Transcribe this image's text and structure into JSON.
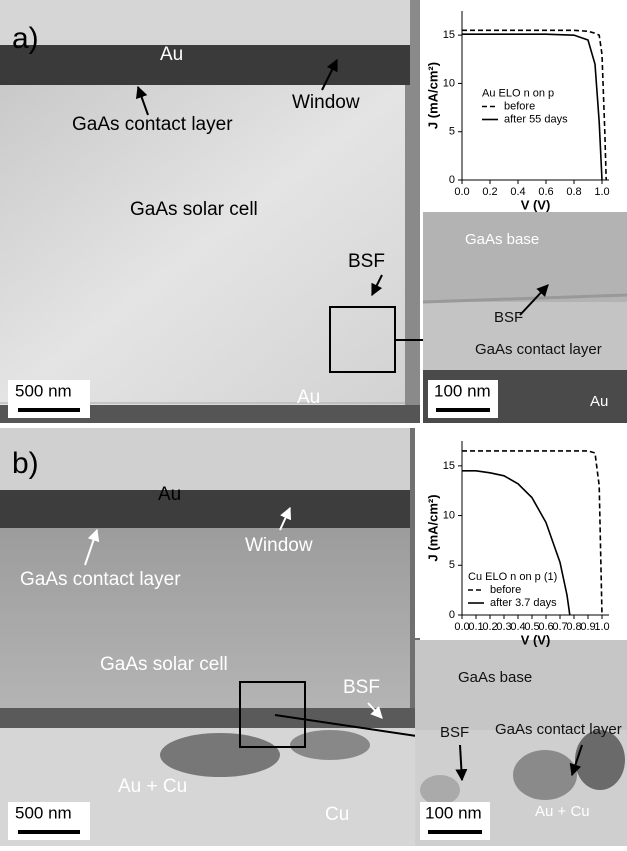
{
  "panels": [
    {
      "letter": "a)",
      "image_labels": [
        "Au",
        "GaAs contact layer",
        "Window",
        "GaAs solar cell",
        "BSF",
        "Au",
        "500 nm"
      ],
      "zoom_labels": [
        "GaAs base",
        "BSF",
        "GaAs contact layer",
        "Au",
        "100 nm"
      ]
    },
    {
      "letter": "b)",
      "image_labels": [
        "Au",
        "GaAs contact layer",
        "Window",
        "GaAs solar cell",
        "BSF",
        "Au + Cu",
        "Cu",
        "500 nm"
      ],
      "zoom_labels": [
        "GaAs base",
        "BSF",
        "GaAs contact layer",
        "Au + Cu",
        "100 nm"
      ]
    }
  ],
  "chart_data": [
    {
      "type": "line",
      "xlabel": "V (V)",
      "ylabel": "J (mA/cm²)",
      "legend_title": "Au ELO n on p",
      "legend_loc": "center",
      "xlim": [
        0,
        1.05
      ],
      "ylim": [
        0,
        17.5
      ],
      "xticks": [
        {
          "value": 0,
          "label": "0.0"
        },
        0.2,
        0.4,
        0.6,
        0.8,
        {
          "value": 1,
          "label": "1.0"
        }
      ],
      "yticks": [
        0,
        5,
        10,
        15
      ],
      "x": [
        0,
        0.2,
        0.4,
        0.6,
        0.8,
        0.9,
        0.95,
        0.98,
        1.0,
        1.02,
        1.03
      ],
      "series": [
        {
          "name": "before",
          "color": "#000000",
          "linestyle": "dashed",
          "values": [
            15.5,
            15.5,
            15.5,
            15.5,
            15.5,
            15.4,
            15.2,
            15.0,
            13,
            5,
            0
          ]
        },
        {
          "name": "after 55 days",
          "color": "#000000",
          "linestyle": "solid",
          "values": [
            15.1,
            15.1,
            15.1,
            15.1,
            15.0,
            14.5,
            12,
            6,
            0,
            null,
            null
          ]
        }
      ]
    },
    {
      "type": "line",
      "xlabel": "V (V)",
      "ylabel": "J (mA/cm²)",
      "legend_title": "Cu ELO n on p (1)",
      "legend_loc": "lower left",
      "xlim": [
        0,
        1.05
      ],
      "ylim": [
        0,
        17.5
      ],
      "xticks": [
        {
          "value": 0,
          "label": "0.0"
        },
        0.1,
        0.2,
        0.3,
        0.4,
        0.5,
        0.6,
        0.7,
        0.8,
        0.9,
        {
          "value": 1,
          "label": "1.0"
        }
      ],
      "yticks": [
        0,
        5,
        10,
        15
      ],
      "x": [
        0,
        0.1,
        0.2,
        0.3,
        0.4,
        0.5,
        0.6,
        0.7,
        0.75,
        0.77,
        0.9,
        0.95,
        0.98,
        1.0
      ],
      "series": [
        {
          "name": "before",
          "color": "#000000",
          "linestyle": "dashed",
          "values": [
            16.5,
            16.5,
            16.5,
            16.5,
            16.5,
            16.5,
            16.5,
            16.5,
            16.5,
            16.5,
            16.5,
            16.3,
            13,
            0
          ]
        },
        {
          "name": "after 3.7 days",
          "color": "#000000",
          "linestyle": "solid",
          "values": [
            14.5,
            14.5,
            14.3,
            14.0,
            13.2,
            11.8,
            9.3,
            5.3,
            2,
            0,
            null,
            null,
            null,
            null
          ]
        }
      ]
    }
  ]
}
